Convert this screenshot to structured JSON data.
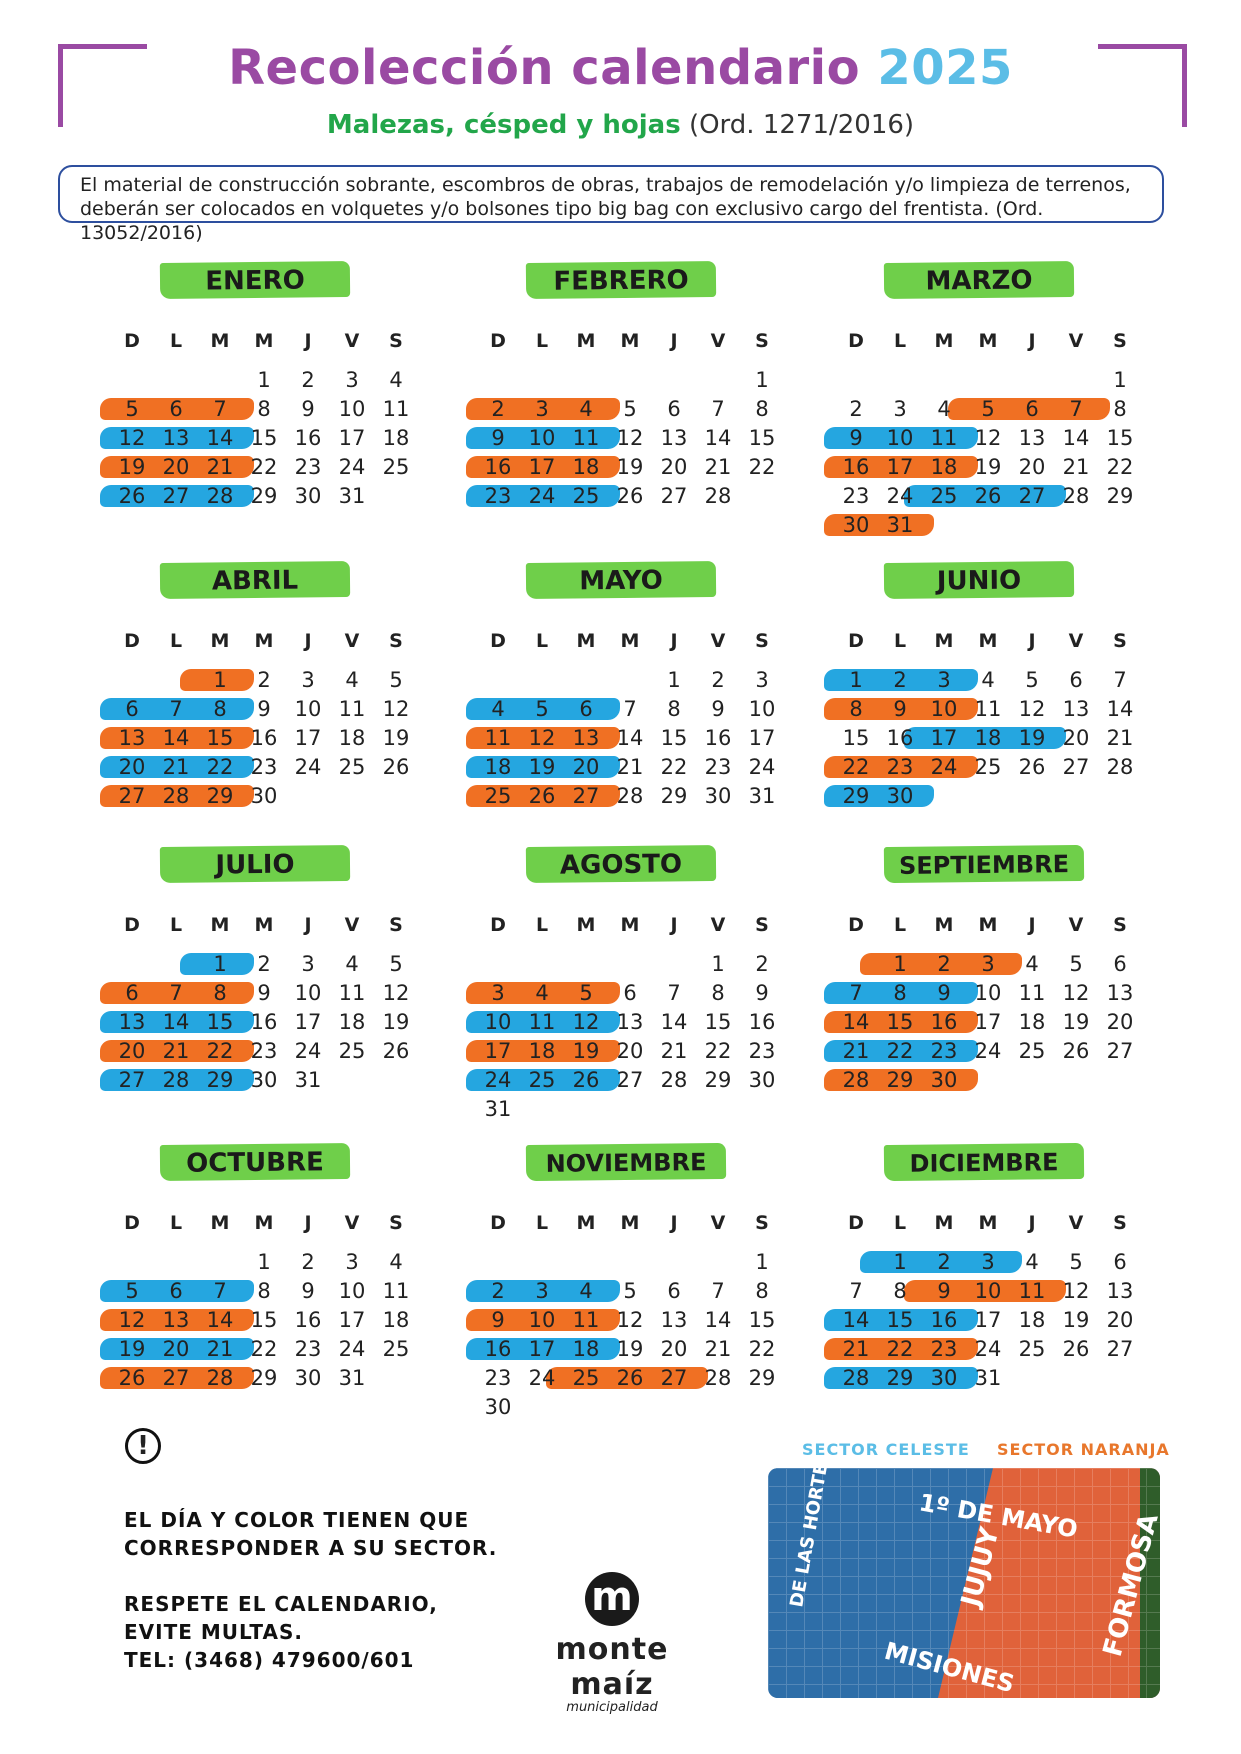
{
  "header": {
    "title": "Recolección calendario",
    "year": "2025",
    "subtitle_green": "Malezas, césped y hojas",
    "subtitle_ord": "(Ord. 1271/2016)",
    "notice_line1": "El material de construcción sobrante, escombros de obras, trabajos de remodelación y/o limpieza de terrenos,",
    "notice_line2": "deberán ser colocados en volquetes y/o bolsones tipo big bag con exclusivo cargo del frentista. (Ord. 13052/2016)"
  },
  "colors": {
    "accent_purple": "#9a4aa3",
    "year_blue": "#5bbde6",
    "green": "#6fcf4a",
    "blue": "#25a6e0",
    "orange": "#f07023"
  },
  "day_names": [
    "D",
    "L",
    "M",
    "M",
    "J",
    "V",
    "S"
  ],
  "months": [
    {
      "name": "ENERO",
      "first_weekday": 3,
      "days": 31,
      "marks": [
        {
          "c": "orange",
          "days": [
            5,
            6,
            7
          ]
        },
        {
          "c": "blue",
          "days": [
            12,
            13,
            14
          ]
        },
        {
          "c": "orange",
          "days": [
            19,
            20,
            21
          ]
        },
        {
          "c": "blue",
          "days": [
            26,
            27,
            28
          ]
        }
      ]
    },
    {
      "name": "FEBRERO",
      "first_weekday": 6,
      "days": 28,
      "marks": [
        {
          "c": "orange",
          "days": [
            2,
            3,
            4
          ]
        },
        {
          "c": "blue",
          "days": [
            9,
            10,
            11
          ]
        },
        {
          "c": "orange",
          "days": [
            16,
            17,
            18
          ]
        },
        {
          "c": "blue",
          "days": [
            23,
            24,
            25
          ]
        }
      ]
    },
    {
      "name": "MARZO",
      "first_weekday": 6,
      "days": 31,
      "marks": [
        {
          "c": "orange",
          "days": [
            5,
            6,
            7
          ]
        },
        {
          "c": "blue",
          "days": [
            9,
            10,
            11
          ]
        },
        {
          "c": "orange",
          "days": [
            16,
            17,
            18
          ]
        },
        {
          "c": "blue",
          "days": [
            25,
            26,
            27
          ]
        },
        {
          "c": "orange",
          "days": [
            30,
            31
          ]
        }
      ]
    },
    {
      "name": "ABRIL",
      "first_weekday": 2,
      "days": 30,
      "marks": [
        {
          "c": "orange",
          "days": [
            1
          ]
        },
        {
          "c": "blue",
          "days": [
            6,
            7,
            8
          ]
        },
        {
          "c": "orange",
          "days": [
            13,
            14,
            15
          ]
        },
        {
          "c": "blue",
          "days": [
            20,
            21,
            22
          ]
        },
        {
          "c": "orange",
          "days": [
            27,
            28,
            29
          ]
        }
      ]
    },
    {
      "name": "MAYO",
      "first_weekday": 4,
      "days": 31,
      "marks": [
        {
          "c": "blue",
          "days": [
            4,
            5,
            6
          ]
        },
        {
          "c": "orange",
          "days": [
            11,
            12,
            13
          ]
        },
        {
          "c": "blue",
          "days": [
            18,
            19,
            20
          ]
        },
        {
          "c": "orange",
          "days": [
            25,
            26,
            27
          ]
        }
      ]
    },
    {
      "name": "JUNIO",
      "first_weekday": 0,
      "days": 30,
      "marks": [
        {
          "c": "blue",
          "days": [
            1,
            2,
            3
          ]
        },
        {
          "c": "orange",
          "days": [
            8,
            9,
            10
          ]
        },
        {
          "c": "blue",
          "days": [
            17,
            18,
            19
          ]
        },
        {
          "c": "orange",
          "days": [
            22,
            23,
            24
          ]
        },
        {
          "c": "blue",
          "days": [
            29,
            30
          ]
        }
      ]
    },
    {
      "name": "JULIO",
      "first_weekday": 2,
      "days": 31,
      "marks": [
        {
          "c": "blue",
          "days": [
            1
          ]
        },
        {
          "c": "orange",
          "days": [
            6,
            7,
            8
          ]
        },
        {
          "c": "blue",
          "days": [
            13,
            14,
            15
          ]
        },
        {
          "c": "orange",
          "days": [
            20,
            21,
            22
          ]
        },
        {
          "c": "blue",
          "days": [
            27,
            28,
            29
          ]
        }
      ]
    },
    {
      "name": "AGOSTO",
      "first_weekday": 5,
      "days": 31,
      "marks": [
        {
          "c": "orange",
          "days": [
            3,
            4,
            5
          ]
        },
        {
          "c": "blue",
          "days": [
            10,
            11,
            12
          ]
        },
        {
          "c": "orange",
          "days": [
            17,
            18,
            19
          ]
        },
        {
          "c": "blue",
          "days": [
            24,
            25,
            26
          ]
        }
      ]
    },
    {
      "name": "SEPTIEMBRE",
      "first_weekday": 1,
      "days": 30,
      "marks": [
        {
          "c": "orange",
          "days": [
            1,
            2,
            3
          ]
        },
        {
          "c": "blue",
          "days": [
            7,
            8,
            9
          ]
        },
        {
          "c": "orange",
          "days": [
            14,
            15,
            16
          ]
        },
        {
          "c": "blue",
          "days": [
            21,
            22,
            23
          ]
        },
        {
          "c": "orange",
          "days": [
            28,
            29,
            30
          ]
        }
      ]
    },
    {
      "name": "OCTUBRE",
      "first_weekday": 3,
      "days": 31,
      "marks": [
        {
          "c": "blue",
          "days": [
            5,
            6,
            7
          ]
        },
        {
          "c": "orange",
          "days": [
            12,
            13,
            14
          ]
        },
        {
          "c": "blue",
          "days": [
            19,
            20,
            21
          ]
        },
        {
          "c": "orange",
          "days": [
            26,
            27,
            28
          ]
        }
      ]
    },
    {
      "name": "NOVIEMBRE",
      "first_weekday": 6,
      "days": 30,
      "marks": [
        {
          "c": "blue",
          "days": [
            2,
            3,
            4
          ]
        },
        {
          "c": "orange",
          "days": [
            9,
            10,
            11
          ]
        },
        {
          "c": "blue",
          "days": [
            16,
            17,
            18
          ]
        },
        {
          "c": "orange",
          "days": [
            25,
            26,
            27
          ]
        }
      ]
    },
    {
      "name": "DICIEMBRE",
      "first_weekday": 1,
      "days": 31,
      "marks": [
        {
          "c": "blue",
          "days": [
            1,
            2,
            3
          ]
        },
        {
          "c": "orange",
          "days": [
            9,
            10,
            11
          ]
        },
        {
          "c": "blue",
          "days": [
            14,
            15,
            16
          ]
        },
        {
          "c": "orange",
          "days": [
            21,
            22,
            23
          ]
        },
        {
          "c": "blue",
          "days": [
            28,
            29,
            30
          ]
        }
      ]
    }
  ],
  "info": {
    "icon": "exclamation-circle-icon",
    "line1": "EL DÍA Y COLOR TIENEN QUE",
    "line2": "CORRESPONDER A SU SECTOR.",
    "line3": "RESPETE EL CALENDARIO,",
    "line4": "EVITE MULTAS.",
    "line5": "TEL: (3468) 479600/601"
  },
  "logo": {
    "glyph": "m",
    "name": "monte maíz",
    "sub": "municipalidad"
  },
  "sectors": {
    "blue_label": "SECTOR CELESTE",
    "orange_label": "SECTOR NARANJA",
    "map_labels": {
      "north": "1º DE MAYO",
      "west": "DE LAS HORTENSIAS",
      "center": "JUJUY",
      "east": "FORMOSA",
      "south": "MISIONES"
    }
  }
}
